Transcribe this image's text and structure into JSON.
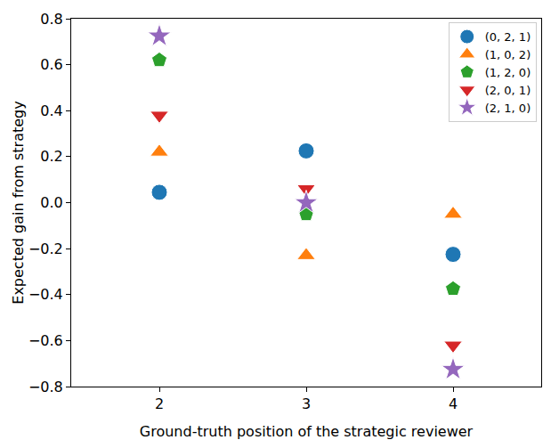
{
  "chart_data": {
    "type": "scatter",
    "x_label": "Ground-truth position of the strategic reviewer",
    "y_label": "Expected gain from strategy",
    "x": [
      2,
      3,
      4
    ],
    "series": [
      {
        "name": "(0, 2, 1)",
        "color": "#1f77b4",
        "marker": "circle",
        "values": [
          0.045,
          0.225,
          -0.225
        ]
      },
      {
        "name": "(1, 0, 2)",
        "color": "#ff7f0e",
        "marker": "triangle-up",
        "values": [
          0.22,
          -0.23,
          -0.05
        ]
      },
      {
        "name": "(1, 2, 0)",
        "color": "#2ca02c",
        "marker": "pentagon",
        "values": [
          0.62,
          -0.05,
          -0.375
        ]
      },
      {
        "name": "(2, 0, 1)",
        "color": "#d62728",
        "marker": "triangle-down",
        "values": [
          0.38,
          0.06,
          -0.62
        ]
      },
      {
        "name": "(2, 1, 0)",
        "color": "#9467bd",
        "marker": "star",
        "values": [
          0.725,
          0.0,
          -0.725
        ]
      }
    ],
    "xlim": [
      1.4,
      4.6
    ],
    "xticks": [
      2,
      3,
      4
    ],
    "ylim": [
      -0.8,
      0.8
    ],
    "yticks": [
      {
        "value": -0.8,
        "label": "−0.8"
      },
      {
        "value": -0.6,
        "label": "−0.6"
      },
      {
        "value": -0.4,
        "label": "−0.4"
      },
      {
        "value": -0.2,
        "label": "−0.2"
      },
      {
        "value": 0.0,
        "label": "0.0"
      },
      0.2,
      0.4,
      0.6,
      0.8
    ],
    "grid": false,
    "legend": "upper right"
  }
}
